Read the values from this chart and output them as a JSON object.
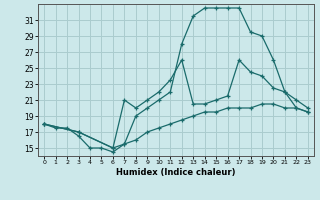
{
  "xlabel": "Humidex (Indice chaleur)",
  "bg_color": "#cce8ea",
  "grid_color": "#aaccce",
  "line_color": "#1a6b6b",
  "xlim": [
    -0.5,
    23.5
  ],
  "ylim": [
    14,
    33
  ],
  "xticks": [
    0,
    1,
    2,
    3,
    4,
    5,
    6,
    7,
    8,
    9,
    10,
    11,
    12,
    13,
    14,
    15,
    16,
    17,
    18,
    19,
    20,
    21,
    22,
    23
  ],
  "yticks": [
    15,
    17,
    19,
    21,
    23,
    25,
    27,
    29,
    31
  ],
  "line1_x": [
    0,
    1,
    2,
    3,
    4,
    5,
    6,
    7,
    8,
    9,
    10,
    11,
    12,
    13,
    14,
    15,
    16,
    17,
    18,
    19,
    20,
    21,
    22,
    23
  ],
  "line1_y": [
    18,
    17.5,
    17.5,
    16.5,
    15,
    15,
    14.5,
    15.5,
    19,
    20,
    21,
    22,
    28,
    31.5,
    32.5,
    32.5,
    32.5,
    32.5,
    29.5,
    29,
    26,
    22,
    20,
    19.5
  ],
  "line2_x": [
    0,
    3,
    6,
    7,
    8,
    9,
    10,
    11,
    12,
    13,
    14,
    15,
    16,
    17,
    18,
    19,
    20,
    21,
    22,
    23
  ],
  "line2_y": [
    18,
    17,
    15,
    21,
    20,
    21,
    22,
    23.5,
    26,
    20.5,
    20.5,
    21,
    21.5,
    26,
    24.5,
    24,
    22.5,
    22,
    21,
    20
  ],
  "line3_x": [
    0,
    3,
    6,
    7,
    8,
    9,
    10,
    11,
    12,
    13,
    14,
    15,
    16,
    17,
    18,
    19,
    20,
    21,
    22,
    23
  ],
  "line3_y": [
    18,
    17,
    15,
    15.5,
    16,
    17,
    17.5,
    18,
    18.5,
    19,
    19.5,
    19.5,
    20,
    20,
    20,
    20.5,
    20.5,
    20,
    20,
    19.5
  ]
}
